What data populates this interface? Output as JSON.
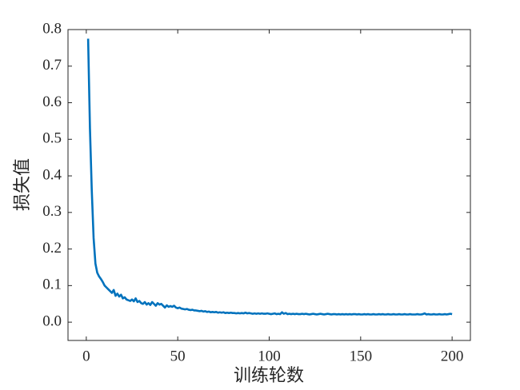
{
  "chart_data": {
    "type": "line",
    "xlabel": "训练轮数",
    "ylabel": "损失值",
    "xlim": [
      -10,
      210
    ],
    "ylim": [
      -0.05,
      0.8
    ],
    "xticks": [
      0,
      50,
      100,
      150,
      200
    ],
    "yticks": [
      {
        "value": 0,
        "label": "0.0"
      },
      0.1,
      0.2,
      0.3,
      0.4,
      0.5,
      0.6,
      0.7,
      0.8
    ],
    "x": [
      1,
      2,
      3,
      4,
      5,
      6,
      7,
      8,
      9,
      10,
      11,
      12,
      13,
      14,
      15,
      16,
      17,
      18,
      19,
      20,
      21,
      22,
      23,
      24,
      25,
      26,
      27,
      28,
      29,
      30,
      31,
      32,
      33,
      34,
      35,
      36,
      37,
      38,
      39,
      40,
      41,
      42,
      43,
      44,
      45,
      46,
      47,
      48,
      49,
      50,
      51,
      52,
      53,
      54,
      55,
      56,
      57,
      58,
      59,
      60,
      61,
      62,
      63,
      64,
      65,
      66,
      67,
      68,
      69,
      70,
      71,
      72,
      73,
      74,
      75,
      76,
      77,
      78,
      79,
      80,
      81,
      82,
      83,
      84,
      85,
      86,
      87,
      88,
      89,
      90,
      91,
      92,
      93,
      94,
      95,
      96,
      97,
      98,
      99,
      100,
      101,
      102,
      103,
      104,
      105,
      106,
      107,
      108,
      109,
      110,
      111,
      112,
      113,
      114,
      115,
      116,
      117,
      118,
      119,
      120,
      121,
      122,
      123,
      124,
      125,
      126,
      127,
      128,
      129,
      130,
      131,
      132,
      133,
      134,
      135,
      136,
      137,
      138,
      139,
      140,
      141,
      142,
      143,
      144,
      145,
      146,
      147,
      148,
      149,
      150,
      151,
      152,
      153,
      154,
      155,
      156,
      157,
      158,
      159,
      160,
      161,
      162,
      163,
      164,
      165,
      166,
      167,
      168,
      169,
      170,
      171,
      172,
      173,
      174,
      175,
      176,
      177,
      178,
      179,
      180,
      181,
      182,
      183,
      184,
      185,
      186,
      187,
      188,
      189,
      190,
      191,
      192,
      193,
      194,
      195,
      196,
      197,
      198,
      199,
      200
    ],
    "series": [
      {
        "color": "#0072bd",
        "values": [
          0.775,
          0.53,
          0.36,
          0.23,
          0.16,
          0.135,
          0.125,
          0.118,
          0.11,
          0.1,
          0.095,
          0.09,
          0.085,
          0.08,
          0.088,
          0.072,
          0.078,
          0.07,
          0.075,
          0.065,
          0.068,
          0.062,
          0.06,
          0.058,
          0.062,
          0.057,
          0.065,
          0.055,
          0.058,
          0.052,
          0.05,
          0.055,
          0.048,
          0.052,
          0.047,
          0.055,
          0.05,
          0.045,
          0.052,
          0.048,
          0.05,
          0.045,
          0.04,
          0.046,
          0.042,
          0.044,
          0.042,
          0.045,
          0.04,
          0.038,
          0.04,
          0.037,
          0.036,
          0.035,
          0.036,
          0.034,
          0.033,
          0.034,
          0.032,
          0.032,
          0.031,
          0.03,
          0.031,
          0.029,
          0.03,
          0.028,
          0.029,
          0.027,
          0.028,
          0.027,
          0.028,
          0.026,
          0.027,
          0.026,
          0.027,
          0.025,
          0.026,
          0.025,
          0.026,
          0.025,
          0.025,
          0.024,
          0.025,
          0.024,
          0.025,
          0.024,
          0.026,
          0.024,
          0.025,
          0.024,
          0.023,
          0.024,
          0.023,
          0.024,
          0.023,
          0.024,
          0.023,
          0.023,
          0.024,
          0.023,
          0.022,
          0.023,
          0.024,
          0.022,
          0.023,
          0.022,
          0.027,
          0.023,
          0.025,
          0.022,
          0.023,
          0.022,
          0.023,
          0.022,
          0.023,
          0.022,
          0.022,
          0.023,
          0.022,
          0.023,
          0.022,
          0.021,
          0.022,
          0.023,
          0.022,
          0.021,
          0.022,
          0.023,
          0.022,
          0.021,
          0.022,
          0.023,
          0.022,
          0.021,
          0.022,
          0.022,
          0.021,
          0.022,
          0.021,
          0.022,
          0.021,
          0.022,
          0.021,
          0.022,
          0.021,
          0.022,
          0.022,
          0.021,
          0.022,
          0.021,
          0.021,
          0.022,
          0.021,
          0.022,
          0.021,
          0.021,
          0.022,
          0.021,
          0.021,
          0.022,
          0.021,
          0.022,
          0.021,
          0.021,
          0.022,
          0.021,
          0.021,
          0.022,
          0.021,
          0.021,
          0.022,
          0.021,
          0.021,
          0.022,
          0.021,
          0.021,
          0.022,
          0.021,
          0.021,
          0.021,
          0.022,
          0.021,
          0.021,
          0.022,
          0.024,
          0.021,
          0.022,
          0.021,
          0.021,
          0.022,
          0.021,
          0.021,
          0.022,
          0.021,
          0.021,
          0.022,
          0.021,
          0.022,
          0.023,
          0.022
        ]
      }
    ]
  }
}
